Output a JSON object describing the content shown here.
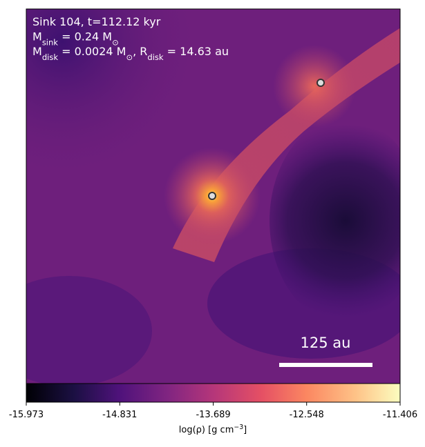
{
  "chart_data": {
    "type": "heatmap",
    "annotations": [
      [
        {
          "text": "Sink 104, t=112.12 kyr"
        }
      ],
      [
        {
          "text": "M"
        },
        {
          "text": "sink",
          "sub": true
        },
        {
          "text": " = 0.24 M"
        },
        {
          "text": "⊙",
          "sub": true
        }
      ],
      [
        {
          "text": "M"
        },
        {
          "text": "disk",
          "sub": true
        },
        {
          "text": " = 0.0024 M"
        },
        {
          "text": "⊙",
          "sub": true
        },
        {
          "text": ", R"
        },
        {
          "text": "disk",
          "sub": true
        },
        {
          "text": " = 14.63 au"
        }
      ]
    ],
    "scale_bar_label": "125 au",
    "colormap": "magma",
    "colorbar_label": [
      {
        "text": "log(ρ) [g cm"
      },
      {
        "text": "−3",
        "sup": true
      },
      {
        "text": "]"
      }
    ],
    "clim": [
      -15.973,
      -11.406
    ],
    "cticks": [
      -15.973,
      -14.831,
      -13.689,
      -12.548,
      -11.406
    ]
  }
}
